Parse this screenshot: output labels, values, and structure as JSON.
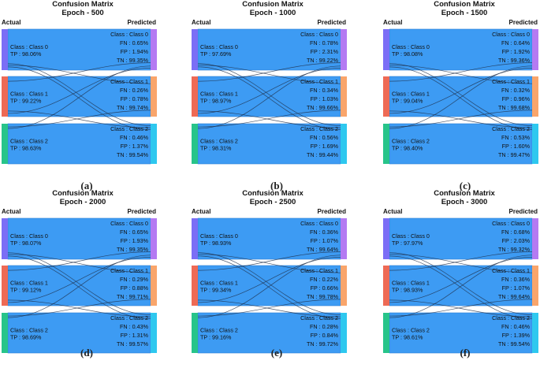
{
  "colors": {
    "flow": "#3d9bf3",
    "flow_border": "#2a7fd6",
    "actual_nodes": [
      "#7b6ef6",
      "#ee6a55",
      "#27c48a"
    ],
    "predicted_nodes": [
      "#b47af2",
      "#f9a56b",
      "#2ec8ef"
    ],
    "crossing_lines": "#1f2f4a"
  },
  "chart_data": [
    {
      "type": "sankey",
      "title": "Confusion Matrix",
      "subtitle": "Epoch - 500",
      "left_label": "Actual",
      "right_label": "Predicted",
      "caption": "(a)",
      "classes": [
        {
          "left": "Class : Class 0",
          "tp": "TP : 98.06%",
          "right": "Class : Class 0",
          "fn": "FN : 0.65%",
          "fp": "FP : 1.94%",
          "tn": "TN : 99.35%"
        },
        {
          "left": "Class : Class 1",
          "tp": "TP : 99.22%",
          "right": "Class : Class 1",
          "fn": "FN : 0.26%",
          "fp": "FP : 0.78%",
          "tn": "TN : 99.74%"
        },
        {
          "left": "Class : Class 2",
          "tp": "TP : 98.63%",
          "right": "Class : Class 2",
          "fn": "FN : 0.46%",
          "fp": "FP : 1.37%",
          "tn": "TN : 99.54%"
        }
      ]
    },
    {
      "type": "sankey",
      "title": "Confusion Matrix",
      "subtitle": "Epoch - 1000",
      "left_label": "Actual",
      "right_label": "Predicted",
      "caption": "(b)",
      "classes": [
        {
          "left": "Class : Class 0",
          "tp": "TP : 97.69%",
          "right": "Class : Class 0",
          "fn": "FN : 0.78%",
          "fp": "FP : 2.31%",
          "tn": "TN : 99.22%"
        },
        {
          "left": "Class : Class 1",
          "tp": "TP : 98.97%",
          "right": "Class : Class 1",
          "fn": "FN : 0.34%",
          "fp": "FP : 1.03%",
          "tn": "TN : 99.66%"
        },
        {
          "left": "Class : Class 2",
          "tp": "TP : 98.31%",
          "right": "Class : Class 2",
          "fn": "FN : 0.56%",
          "fp": "FP : 1.69%",
          "tn": "TN : 99.44%"
        }
      ]
    },
    {
      "type": "sankey",
      "title": "Confusion Matrix",
      "subtitle": "Epoch - 1500",
      "left_label": "Actual",
      "right_label": "Predicted",
      "caption": "(c)",
      "classes": [
        {
          "left": "Class : Class 0",
          "tp": "TP : 98.08%",
          "right": "Class : Class 0",
          "fn": "FN : 0.64%",
          "fp": "FP : 1.92%",
          "tn": "TN : 99.36%"
        },
        {
          "left": "Class : Class 1",
          "tp": "TP : 99.04%",
          "right": "Class : Class 1",
          "fn": "FN : 0.32%",
          "fp": "FP : 0.96%",
          "tn": "TN : 99.68%"
        },
        {
          "left": "Class : Class 2",
          "tp": "TP : 98.40%",
          "right": "Class : Class 2",
          "fn": "FN : 0.53%",
          "fp": "FP : 1.60%",
          "tn": "TN : 99.47%"
        }
      ]
    },
    {
      "type": "sankey",
      "title": "Confusion Matrix",
      "subtitle": "Epoch - 2000",
      "left_label": "Actual",
      "right_label": "Predicted",
      "caption": "(d)",
      "classes": [
        {
          "left": "Class : Class 0",
          "tp": "TP : 98.07%",
          "right": "Class : Class 0",
          "fn": "FN : 0.65%",
          "fp": "FP : 1.93%",
          "tn": "TN : 99.35%"
        },
        {
          "left": "Class : Class 1",
          "tp": "TP : 99.12%",
          "right": "Class : Class 1",
          "fn": "FN : 0.29%",
          "fp": "FP : 0.88%",
          "tn": "TN : 99.71%"
        },
        {
          "left": "Class : Class 2",
          "tp": "TP : 98.69%",
          "right": "Class : Class 2",
          "fn": "FN : 0.43%",
          "fp": "FP : 1.31%",
          "tn": "TN : 99.57%"
        }
      ]
    },
    {
      "type": "sankey",
      "title": "Confusion Matrix",
      "subtitle": "Epoch - 2500",
      "left_label": "Actual",
      "right_label": "Predicted",
      "caption": "(e)",
      "classes": [
        {
          "left": "Class : Class 0",
          "tp": "TP : 98.93%",
          "right": "Class : Class 0",
          "fn": "FN : 0.36%",
          "fp": "FP : 1.07%",
          "tn": "TN : 99.64%"
        },
        {
          "left": "Class : Class 1",
          "tp": "TP : 99.34%",
          "right": "Class : Class 1",
          "fn": "FN : 0.22%",
          "fp": "FP : 0.66%",
          "tn": "TN : 99.78%"
        },
        {
          "left": "Class : Class 2",
          "tp": "TP : 99.16%",
          "right": "Class : Class 2",
          "fn": "FN : 0.28%",
          "fp": "FP : 0.84%",
          "tn": "TN : 99.72%"
        }
      ]
    },
    {
      "type": "sankey",
      "title": "Confusion Matrix",
      "subtitle": "Epoch - 3000",
      "left_label": "Actual",
      "right_label": "Predicted",
      "caption": "(f)",
      "classes": [
        {
          "left": "Class : Class 0",
          "tp": "TP : 97.97%",
          "right": "Class : Class 0",
          "fn": "FN : 0.68%",
          "fp": "FP : 2.03%",
          "tn": "TN : 99.32%"
        },
        {
          "left": "Class : Class 1",
          "tp": "TP : 98.93%",
          "right": "Class : Class 1",
          "fn": "FN : 0.36%",
          "fp": "FP : 1.07%",
          "tn": "TN : 99.64%"
        },
        {
          "left": "Class : Class 2",
          "tp": "TP : 98.61%",
          "right": "Class : Class 2",
          "fn": "FN : 0.46%",
          "fp": "FP : 1.39%",
          "tn": "TN : 99.54%"
        }
      ]
    }
  ]
}
